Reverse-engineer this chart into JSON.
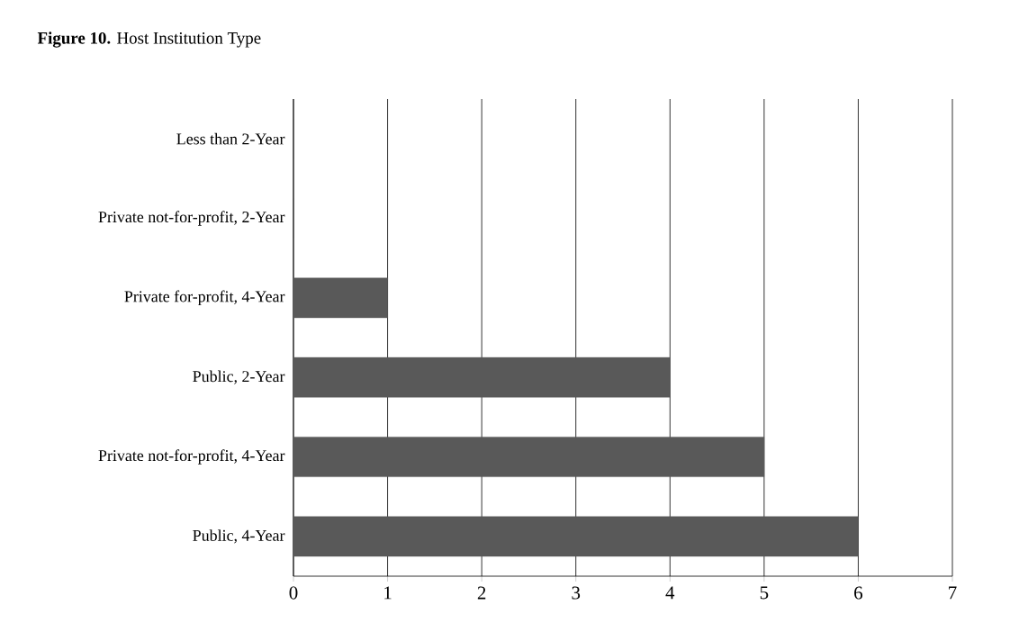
{
  "chart_data": {
    "type": "bar",
    "orientation": "horizontal",
    "title": "**Figure 10.** Host Institution Type",
    "categories": [
      "Less than 2-Year",
      "Private not-for-profit, 2-Year",
      "Private for-profit, 4-Year",
      "Public, 2-Year",
      "Private not-for-profit, 4-Year",
      "Public, 4-Year"
    ],
    "values": [
      0,
      0,
      1,
      4,
      5,
      6
    ],
    "color": "#595959",
    "xlim": [
      0,
      7
    ],
    "xticks": [
      0,
      1,
      2,
      3,
      4,
      5,
      6,
      7
    ],
    "grid": "x"
  }
}
